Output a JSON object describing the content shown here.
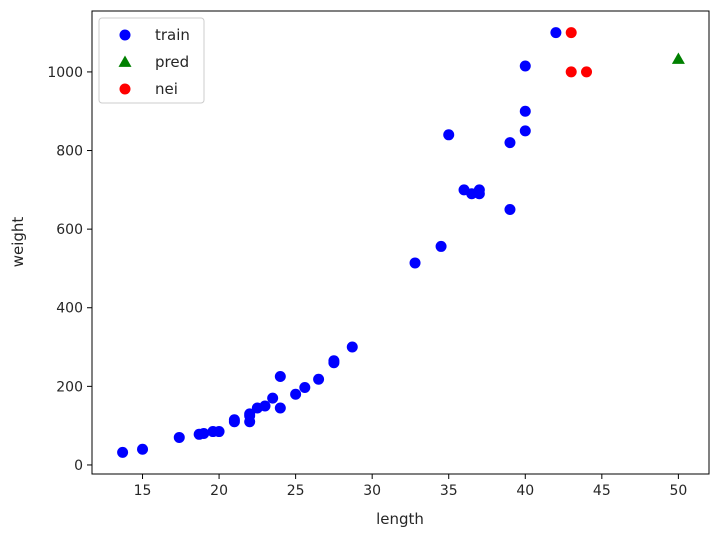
{
  "chart_data": {
    "type": "scatter",
    "xlabel": "length",
    "ylabel": "weight",
    "xlim": [
      11.7,
      52.0
    ],
    "ylim": [
      -23,
      1155
    ],
    "x_ticks": [
      15,
      20,
      25,
      30,
      35,
      40,
      45,
      50
    ],
    "y_ticks": [
      0,
      200,
      400,
      600,
      800,
      1000
    ],
    "grid": false,
    "legend_position": "top-left",
    "series": [
      {
        "name": "train",
        "marker": "circle",
        "color": "#0000ff",
        "points": [
          [
            13.7,
            32
          ],
          [
            15.0,
            40
          ],
          [
            17.4,
            70
          ],
          [
            18.7,
            78
          ],
          [
            19.0,
            80
          ],
          [
            19.6,
            85
          ],
          [
            20.0,
            85
          ],
          [
            21.0,
            110
          ],
          [
            21.0,
            115
          ],
          [
            22.0,
            110
          ],
          [
            22.0,
            125
          ],
          [
            22.0,
            130
          ],
          [
            22.5,
            145
          ],
          [
            23.0,
            150
          ],
          [
            23.5,
            170
          ],
          [
            24.0,
            145
          ],
          [
            24.0,
            225
          ],
          [
            25.0,
            180
          ],
          [
            25.6,
            197
          ],
          [
            26.5,
            218
          ],
          [
            27.5,
            260
          ],
          [
            27.5,
            265
          ],
          [
            28.7,
            300
          ],
          [
            32.8,
            514
          ],
          [
            34.5,
            556
          ],
          [
            35.0,
            840
          ],
          [
            36.0,
            700
          ],
          [
            36.5,
            690
          ],
          [
            37.0,
            690
          ],
          [
            37.0,
            700
          ],
          [
            39.0,
            650
          ],
          [
            39.0,
            820
          ],
          [
            40.0,
            850
          ],
          [
            40.0,
            900
          ],
          [
            40.0,
            1015
          ],
          [
            42.0,
            1100
          ]
        ]
      },
      {
        "name": "pred",
        "marker": "triangle",
        "color": "#008000",
        "points": [
          [
            50.0,
            1033
          ]
        ]
      },
      {
        "name": "nei",
        "marker": "circle",
        "color": "#ff0000",
        "points": [
          [
            43.0,
            1100
          ],
          [
            43.0,
            1000
          ],
          [
            44.0,
            1000
          ]
        ]
      }
    ]
  }
}
